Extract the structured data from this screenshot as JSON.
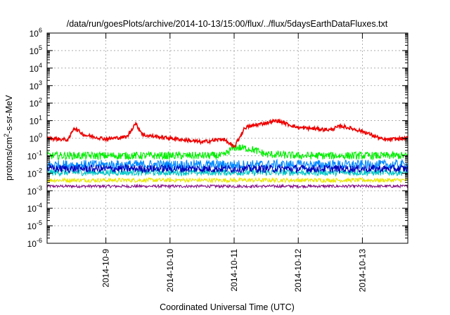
{
  "chart_data": {
    "type": "line",
    "title": "/data/run/goesPlots/archive/2014-10-13/15:00/flux/../flux/5daysEarthDataFluxes.txt",
    "xlabel": "Coordinated Universal Time (UTC)",
    "ylabel_parts": [
      "protons/cm",
      "2",
      "-s-sr-MeV"
    ],
    "y_scale": "log",
    "ylim": [
      1e-06,
      1000000.0
    ],
    "y_ticks": [
      {
        "base": "10",
        "exp": "-6"
      },
      {
        "base": "10",
        "exp": "-5"
      },
      {
        "base": "10",
        "exp": "-4"
      },
      {
        "base": "10",
        "exp": "-3"
      },
      {
        "base": "10",
        "exp": "-2"
      },
      {
        "base": "10",
        "exp": "-1"
      },
      {
        "base": "10",
        "exp": "0"
      },
      {
        "base": "10",
        "exp": "1"
      },
      {
        "base": "10",
        "exp": "2"
      },
      {
        "base": "10",
        "exp": "3"
      },
      {
        "base": "10",
        "exp": "4"
      },
      {
        "base": "10",
        "exp": "5"
      },
      {
        "base": "10",
        "exp": "6"
      }
    ],
    "xlim": [
      "2014-10-08 02:00",
      "2014-10-13 17:00"
    ],
    "x_ticks": [
      "2014-10-9",
      "2014-10-10",
      "2014-10-11",
      "2014-10-12",
      "2014-10-13"
    ],
    "grid": true,
    "series": [
      {
        "color": "#ee0000",
        "x": [
          "2014-10-08 02:00",
          "2014-10-08 10:00",
          "2014-10-08 12:00",
          "2014-10-08 16:00",
          "2014-10-09 00:00",
          "2014-10-09 08:00",
          "2014-10-09 11:00",
          "2014-10-09 14:00",
          "2014-10-10 00:00",
          "2014-10-10 12:00",
          "2014-10-10 20:00",
          "2014-10-11 00:00",
          "2014-10-11 04:00",
          "2014-10-11 09:00",
          "2014-10-11 16:00",
          "2014-10-12 00:00",
          "2014-10-12 12:00",
          "2014-10-12 16:00",
          "2014-10-13 00:00",
          "2014-10-13 08:00",
          "2014-10-13 17:00"
        ],
        "y": [
          1.0,
          0.8,
          4.0,
          1.5,
          0.9,
          1.2,
          7.0,
          1.5,
          1.0,
          0.6,
          0.9,
          0.3,
          4.0,
          6.0,
          10.0,
          4.0,
          3.0,
          5.0,
          2.5,
          0.8,
          1.0
        ]
      },
      {
        "color": "#00ee00",
        "x": [
          "2014-10-08 02:00",
          "2014-10-10 20:00",
          "2014-10-11 00:00",
          "2014-10-11 06:00",
          "2014-10-11 12:00",
          "2014-10-12 00:00",
          "2014-10-13 17:00"
        ],
        "y": [
          0.1,
          0.1,
          0.3,
          0.25,
          0.12,
          0.1,
          0.1
        ]
      },
      {
        "color": "#0088ff",
        "x": [
          "2014-10-08 02:00",
          "2014-10-13 17:00"
        ],
        "y": [
          0.03,
          0.03
        ]
      },
      {
        "color": "#0000bb",
        "x": [
          "2014-10-08 02:00",
          "2014-10-13 17:00"
        ],
        "y": [
          0.018,
          0.018
        ]
      },
      {
        "color": "#00c8c8",
        "x": [
          "2014-10-08 02:00",
          "2014-10-13 17:00"
        ],
        "y": [
          0.011,
          0.011
        ]
      },
      {
        "color": "#e8e800",
        "x": [
          "2014-10-08 02:00",
          "2014-10-13 17:00"
        ],
        "y": [
          0.004,
          0.004
        ]
      },
      {
        "color": "#881188",
        "x": [
          "2014-10-08 02:00",
          "2014-10-13 17:00"
        ],
        "y": [
          0.0018,
          0.0018
        ]
      }
    ]
  }
}
